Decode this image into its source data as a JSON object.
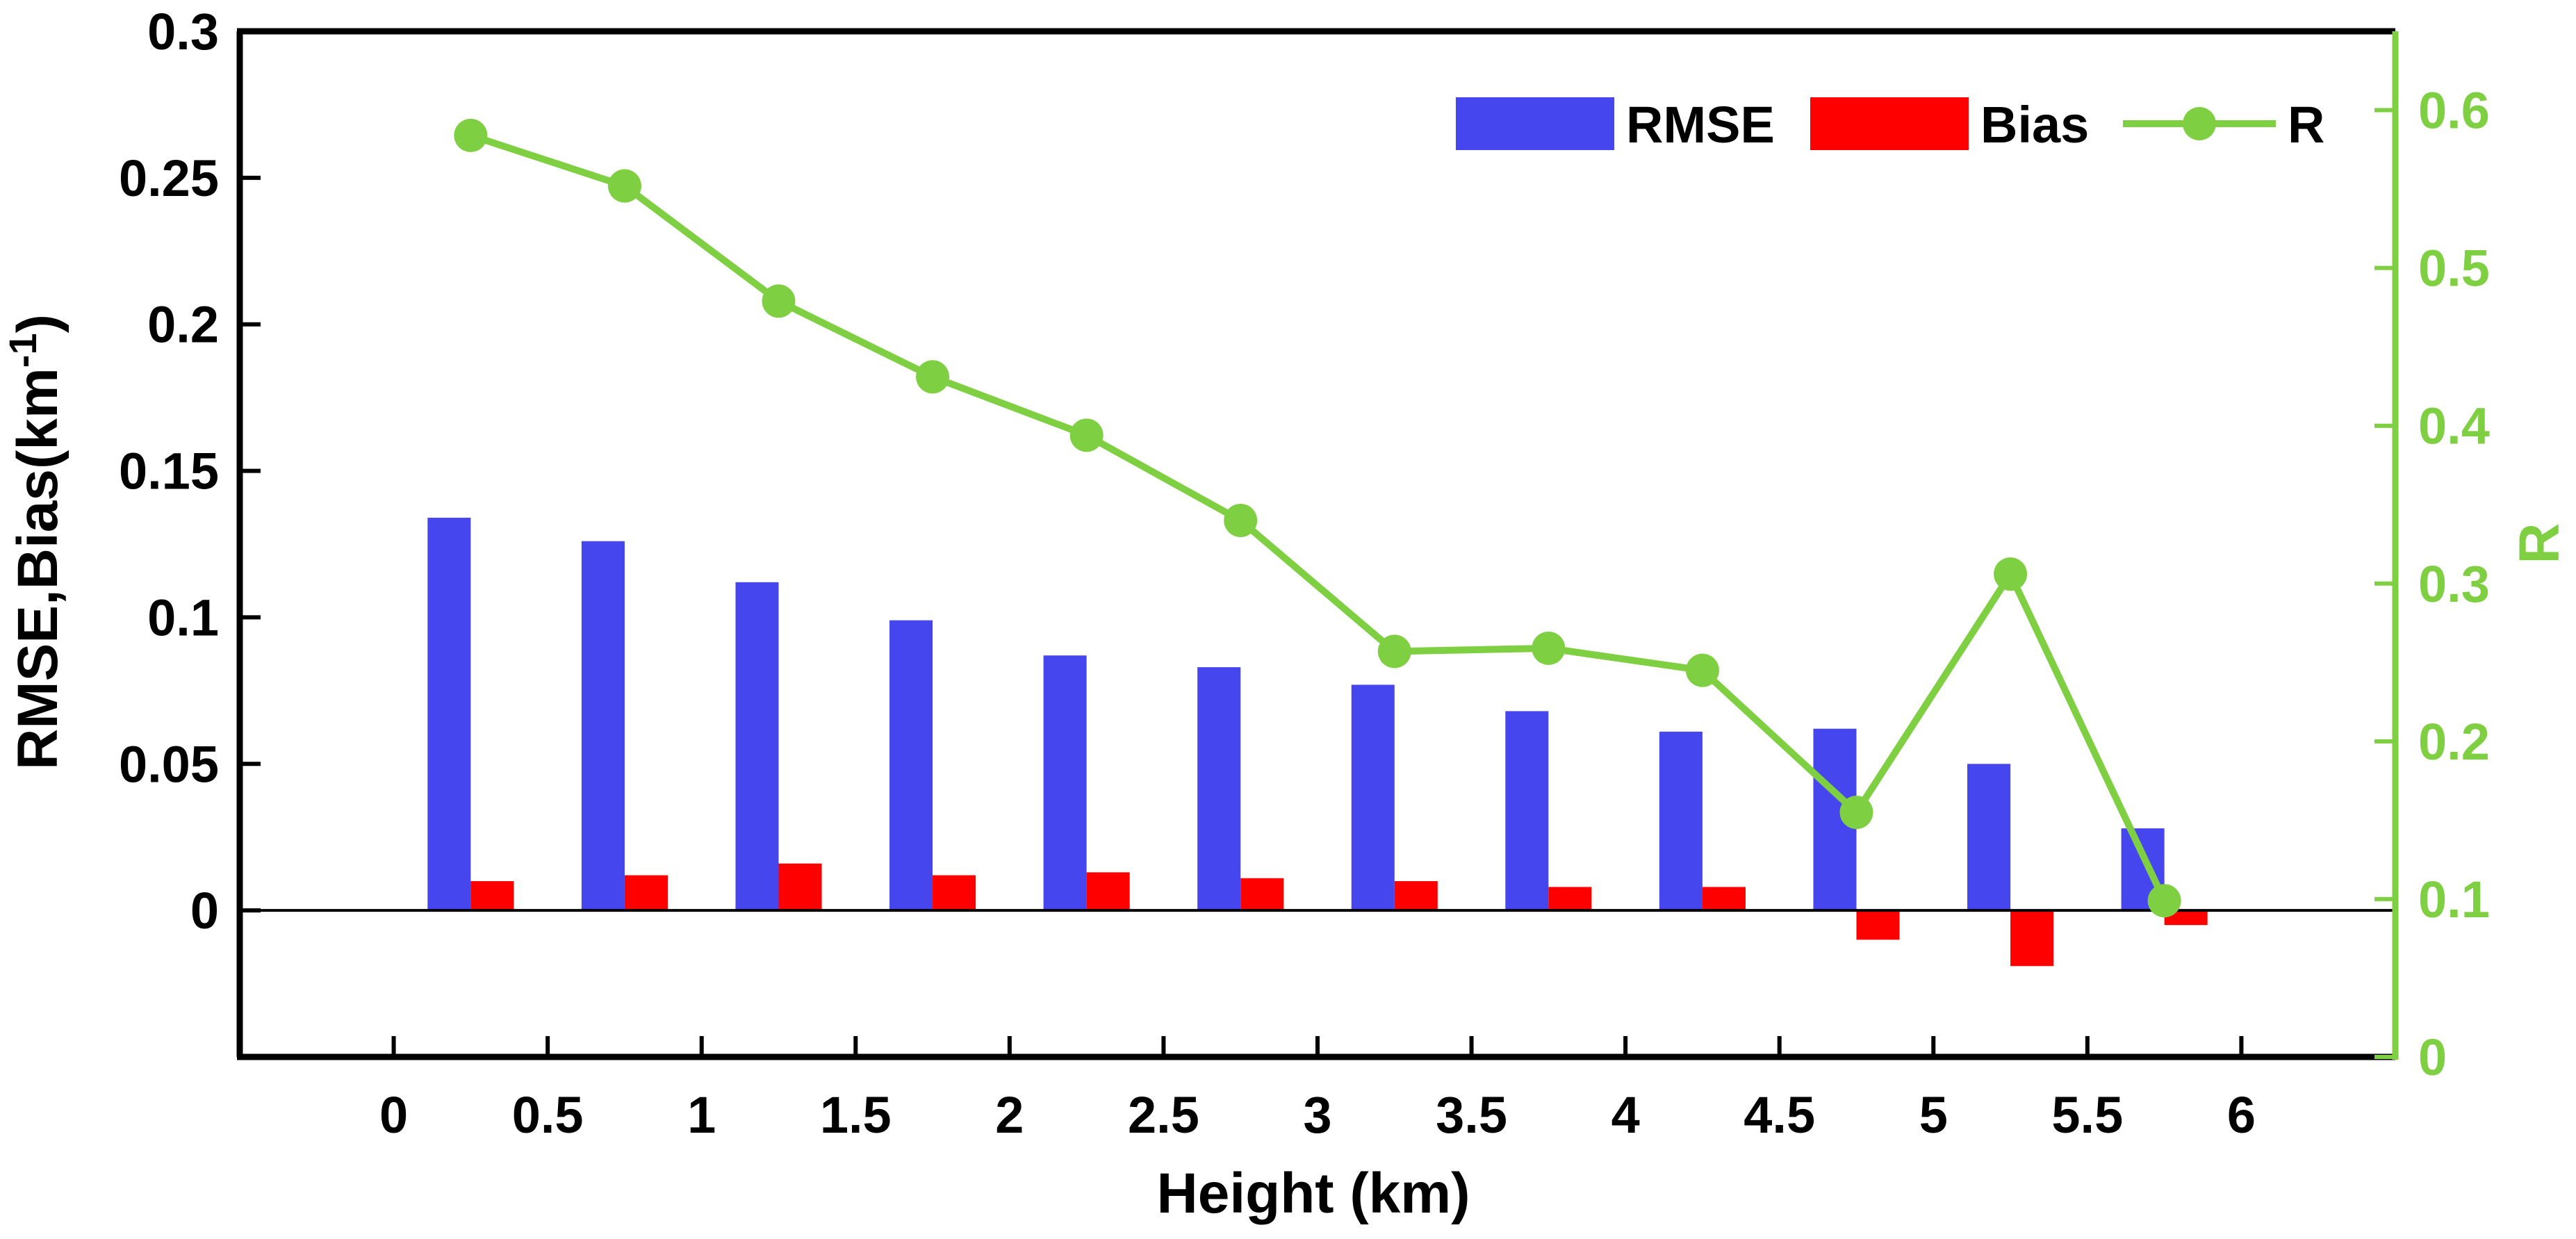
{
  "chart_data": {
    "type": "bar",
    "xlabel": "Height (km)",
    "ylabel_left": "RMSE,Bias(km",
    "ylabel_left_sup": "-1",
    "ylabel_left_close": ")",
    "ylabel_right": "R",
    "xlim": [
      -0.5,
      6.5
    ],
    "ylim_left": [
      -0.05,
      0.3
    ],
    "ylim_right": [
      0,
      0.65
    ],
    "xticks": [
      0,
      0.5,
      1,
      1.5,
      2,
      2.5,
      3,
      3.5,
      4,
      4.5,
      5,
      5.5,
      6
    ],
    "xtick_labels": [
      "0",
      "0.5",
      "1",
      "1.5",
      "2",
      "2.5",
      "3",
      "3.5",
      "4",
      "4.5",
      "5",
      "5.5",
      "6"
    ],
    "yticks_left": [
      0,
      0.05,
      0.1,
      0.15,
      0.2,
      0.25,
      0.3
    ],
    "ytick_labels_left": [
      "0",
      "0.05",
      "0.1",
      "0.15",
      "0.2",
      "0.25",
      "0.3"
    ],
    "yticks_right": [
      0,
      0.1,
      0.2,
      0.3,
      0.4,
      0.5,
      0.6
    ],
    "ytick_labels_right": [
      "0",
      "0.1",
      "0.2",
      "0.3",
      "0.4",
      "0.5",
      "0.6"
    ],
    "x": [
      0.25,
      0.75,
      1.25,
      1.75,
      2.25,
      2.75,
      3.25,
      3.75,
      4.25,
      4.75,
      5.25,
      5.75
    ],
    "series": [
      {
        "name": "RMSE",
        "axis": "left",
        "kind": "bar",
        "color": "#4646EE",
        "values": [
          0.134,
          0.126,
          0.112,
          0.099,
          0.087,
          0.083,
          0.077,
          0.068,
          0.061,
          0.062,
          0.05,
          0.028
        ]
      },
      {
        "name": "Bias",
        "axis": "left",
        "kind": "bar",
        "color": "#FF0000",
        "values": [
          0.01,
          0.012,
          0.016,
          0.012,
          0.013,
          0.011,
          0.01,
          0.008,
          0.008,
          -0.01,
          -0.019,
          -0.005
        ]
      },
      {
        "name": "R",
        "axis": "right",
        "kind": "line",
        "color": "#7FCF42",
        "values": [
          0.584,
          0.552,
          0.479,
          0.431,
          0.394,
          0.34,
          0.257,
          0.259,
          0.245,
          0.155,
          0.306,
          0.099
        ]
      }
    ],
    "legend": [
      "RMSE",
      "Bias",
      "R"
    ],
    "legend_position": "top-right",
    "zero_line": true,
    "grid": false
  }
}
